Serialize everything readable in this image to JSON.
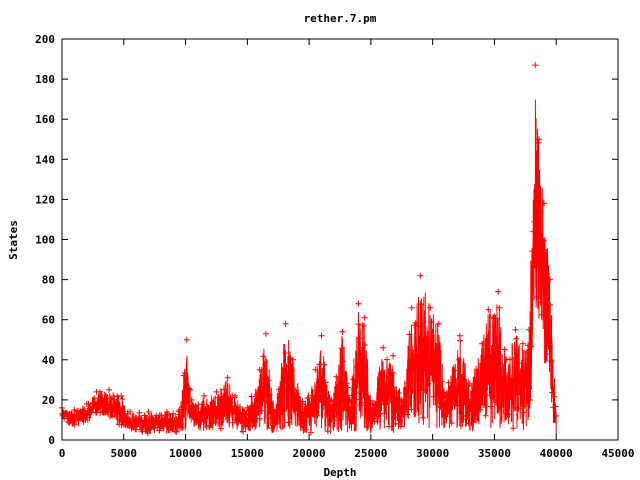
{
  "chart_data": {
    "type": "scatter",
    "title": "rether.7.pm",
    "xlabel": "Depth",
    "ylabel": "States",
    "xlim": [
      0,
      45000
    ],
    "ylim": [
      0,
      200
    ],
    "xticks": [
      "0",
      "5000",
      "10000",
      "15000",
      "20000",
      "25000",
      "30000",
      "35000",
      "40000",
      "45000"
    ],
    "yticks": [
      "0",
      "20",
      "40",
      "60",
      "80",
      "100",
      "120",
      "140",
      "160",
      "180",
      "200"
    ],
    "grid": false,
    "legend": "none",
    "marker": "+",
    "color": "#ff0000",
    "x_max_depth": 40000,
    "envelope": [
      [
        0,
        10,
        16
      ],
      [
        1000,
        6,
        15
      ],
      [
        2000,
        8,
        18
      ],
      [
        2800,
        12,
        24
      ],
      [
        3800,
        10,
        25
      ],
      [
        4800,
        6,
        22
      ],
      [
        5500,
        4,
        14
      ],
      [
        7000,
        3,
        14
      ],
      [
        8500,
        3,
        14
      ],
      [
        9500,
        3,
        15
      ],
      [
        10100,
        5,
        50
      ],
      [
        10500,
        6,
        20
      ],
      [
        11500,
        4,
        22
      ],
      [
        12500,
        5,
        24
      ],
      [
        13400,
        6,
        31
      ],
      [
        14000,
        4,
        22
      ],
      [
        15000,
        3,
        16
      ],
      [
        16000,
        4,
        35
      ],
      [
        16500,
        5,
        53
      ],
      [
        17200,
        3,
        14
      ],
      [
        18100,
        5,
        58
      ],
      [
        18700,
        4,
        40
      ],
      [
        19500,
        3,
        18
      ],
      [
        20500,
        4,
        35
      ],
      [
        21000,
        5,
        52
      ],
      [
        21800,
        3,
        20
      ],
      [
        22700,
        4,
        54
      ],
      [
        23300,
        3,
        20
      ],
      [
        24000,
        5,
        68
      ],
      [
        24500,
        4,
        61
      ],
      [
        25000,
        3,
        18
      ],
      [
        26000,
        4,
        46
      ],
      [
        26800,
        3,
        42
      ],
      [
        27500,
        3,
        20
      ],
      [
        28300,
        5,
        66
      ],
      [
        29000,
        6,
        82
      ],
      [
        29800,
        5,
        66
      ],
      [
        30500,
        6,
        58
      ],
      [
        31000,
        4,
        22
      ],
      [
        32200,
        5,
        52
      ],
      [
        33000,
        4,
        28
      ],
      [
        34000,
        5,
        48
      ],
      [
        34500,
        6,
        65
      ],
      [
        35300,
        5,
        74
      ],
      [
        36000,
        4,
        40
      ],
      [
        36700,
        5,
        55
      ],
      [
        37300,
        4,
        48
      ],
      [
        37800,
        6,
        55
      ],
      [
        38300,
        50,
        187
      ],
      [
        38600,
        60,
        150
      ],
      [
        39000,
        40,
        118
      ],
      [
        39500,
        15,
        80
      ],
      [
        40000,
        0,
        12
      ]
    ]
  }
}
